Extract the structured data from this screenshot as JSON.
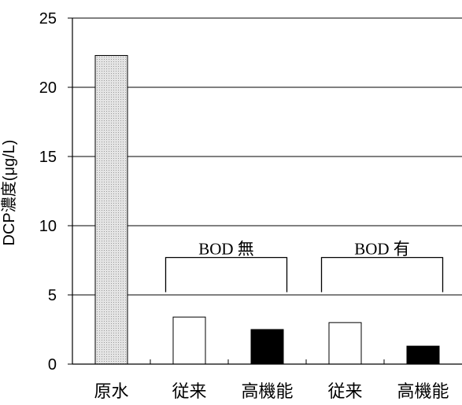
{
  "chart_data": {
    "type": "bar",
    "categories": [
      "原水",
      "従来",
      "高機能",
      "従来",
      "高機能"
    ],
    "values": [
      22.3,
      3.4,
      2.5,
      3.0,
      1.3
    ],
    "bar_fills": [
      "#dcdcdc",
      "#ffffff",
      "#000000",
      "#ffffff",
      "#000000"
    ],
    "title": "",
    "xlabel": "",
    "ylabel": "DCP濃度(μg/L)",
    "ylim": [
      0,
      25
    ],
    "yticks": [
      0,
      5,
      10,
      15,
      20,
      25
    ],
    "grid": true,
    "legend": "none",
    "annotations": [
      {
        "label": "BOD 無",
        "from_category": 1,
        "to_category": 2
      },
      {
        "label": "BOD 有",
        "from_category": 3,
        "to_category": 4
      }
    ]
  }
}
